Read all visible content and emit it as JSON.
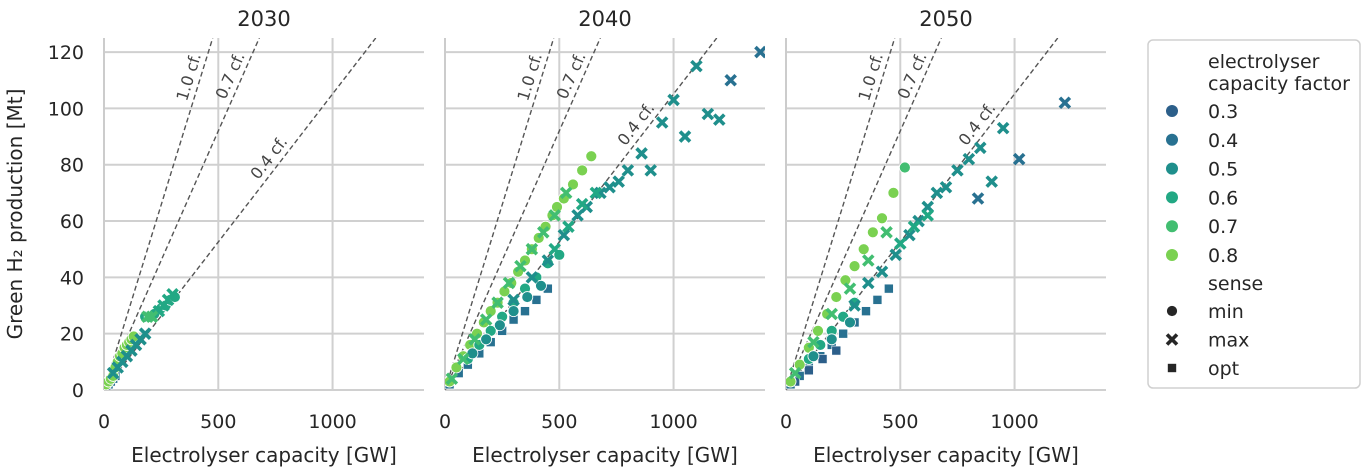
{
  "chart_data": {
    "type": "scatter",
    "xlabel": "Electrolyser capacity [GW]",
    "ylabel": "Green H₂ production [Mt]",
    "xlim": [
      0,
      1400
    ],
    "ylim": [
      0,
      125
    ],
    "xticks": [
      0,
      500,
      1000
    ],
    "yticks": [
      0,
      20,
      40,
      60,
      80,
      100,
      120
    ],
    "grid": true,
    "capacity_factor_lines": [
      {
        "label": "1.0 cf.",
        "cf": 1.0
      },
      {
        "label": "0.7 cf.",
        "cf": 0.7
      },
      {
        "label": "0.4 cf.",
        "cf": 0.4
      }
    ],
    "legend": {
      "placement": "right",
      "hue_title": "electrolyser\ncapacity factor",
      "hue_items": [
        {
          "label": "0.3",
          "color": "#2c5f8a"
        },
        {
          "label": "0.4",
          "color": "#287191"
        },
        {
          "label": "0.5",
          "color": "#1f8f8c"
        },
        {
          "label": "0.6",
          "color": "#22a884"
        },
        {
          "label": "0.7",
          "color": "#42be71"
        },
        {
          "label": "0.8",
          "color": "#7ad151"
        }
      ],
      "style_title": "sense",
      "style_items": [
        {
          "label": "min",
          "marker": "circle"
        },
        {
          "label": "max",
          "marker": "x"
        },
        {
          "label": "opt",
          "marker": "square"
        }
      ]
    },
    "panels": [
      {
        "title": "2030",
        "series": [
          {
            "sense": "min",
            "points": [
              [
                10,
                2,
                0.8
              ],
              [
                20,
                3,
                0.8
              ],
              [
                30,
                4,
                0.8
              ],
              [
                40,
                5,
                0.8
              ],
              [
                50,
                8,
                0.8
              ],
              [
                60,
                10,
                0.8
              ],
              [
                70,
                12,
                0.8
              ],
              [
                80,
                13,
                0.8
              ],
              [
                90,
                15,
                0.8
              ],
              [
                100,
                16,
                0.8
              ],
              [
                110,
                17,
                0.8
              ],
              [
                120,
                18,
                0.8
              ],
              [
                130,
                19,
                0.8
              ],
              [
                180,
                26,
                0.6
              ],
              [
                200,
                26,
                0.6
              ],
              [
                220,
                27,
                0.6
              ],
              [
                250,
                29,
                0.6
              ],
              [
                270,
                30,
                0.6
              ],
              [
                290,
                32,
                0.6
              ],
              [
                310,
                33,
                0.6
              ]
            ]
          },
          {
            "sense": "max",
            "points": [
              [
                40,
                6,
                0.5
              ],
              [
                60,
                8,
                0.5
              ],
              [
                80,
                10,
                0.5
              ],
              [
                100,
                12,
                0.5
              ],
              [
                120,
                14,
                0.5
              ],
              [
                140,
                16,
                0.5
              ],
              [
                160,
                18,
                0.5
              ],
              [
                180,
                20,
                0.5
              ],
              [
                240,
                28,
                0.6
              ],
              [
                260,
                30,
                0.6
              ],
              [
                280,
                32,
                0.6
              ],
              [
                300,
                34,
                0.6
              ],
              [
                190,
                26,
                0.7
              ],
              [
                210,
                26,
                0.7
              ]
            ]
          },
          {
            "sense": "opt",
            "points": [
              [
                10,
                1,
                0.4
              ],
              [
                20,
                2,
                0.4
              ],
              [
                30,
                3,
                0.4
              ],
              [
                40,
                4,
                0.4
              ],
              [
                50,
                5,
                0.4
              ]
            ]
          }
        ]
      },
      {
        "title": "2040",
        "series": [
          {
            "sense": "min",
            "points": [
              [
                20,
                3,
                0.8
              ],
              [
                50,
                8,
                0.8
              ],
              [
                80,
                12,
                0.8
              ],
              [
                110,
                16,
                0.8
              ],
              [
                140,
                20,
                0.8
              ],
              [
                170,
                24,
                0.8
              ],
              [
                200,
                28,
                0.8
              ],
              [
                230,
                31,
                0.8
              ],
              [
                260,
                35,
                0.8
              ],
              [
                290,
                38,
                0.8
              ],
              [
                320,
                42,
                0.8
              ],
              [
                350,
                46,
                0.8
              ],
              [
                380,
                50,
                0.8
              ],
              [
                410,
                54,
                0.8
              ],
              [
                440,
                58,
                0.8
              ],
              [
                470,
                62,
                0.8
              ],
              [
                490,
                65,
                0.8
              ],
              [
                520,
                68,
                0.8
              ],
              [
                560,
                73,
                0.8
              ],
              [
                600,
                78,
                0.8
              ],
              [
                640,
                83,
                0.8
              ],
              [
                100,
                11,
                0.6
              ],
              [
                150,
                16,
                0.6
              ],
              [
                200,
                21,
                0.6
              ],
              [
                250,
                26,
                0.6
              ],
              [
                300,
                31,
                0.6
              ],
              [
                350,
                36,
                0.6
              ],
              [
                400,
                40,
                0.6
              ],
              [
                450,
                45,
                0.6
              ],
              [
                500,
                48,
                0.6
              ],
              [
                120,
                13,
                0.5
              ],
              [
                180,
                18,
                0.5
              ],
              [
                240,
                23,
                0.5
              ],
              [
                300,
                28,
                0.5
              ],
              [
                360,
                33,
                0.5
              ],
              [
                420,
                37,
                0.5
              ]
            ]
          },
          {
            "sense": "max",
            "points": [
              [
                30,
                4,
                0.7
              ],
              [
                80,
                11,
                0.7
              ],
              [
                130,
                18,
                0.7
              ],
              [
                180,
                25,
                0.7
              ],
              [
                230,
                31,
                0.7
              ],
              [
                280,
                38,
                0.7
              ],
              [
                330,
                44,
                0.7
              ],
              [
                380,
                50,
                0.7
              ],
              [
                430,
                56,
                0.7
              ],
              [
                480,
                62,
                0.7
              ],
              [
                530,
                70,
                0.7
              ],
              [
                300,
                32,
                0.5
              ],
              [
                380,
                40,
                0.5
              ],
              [
                450,
                46,
                0.5
              ],
              [
                520,
                55,
                0.5
              ],
              [
                580,
                62,
                0.5
              ],
              [
                620,
                65,
                0.5
              ],
              [
                680,
                70,
                0.5
              ],
              [
                720,
                72,
                0.5
              ],
              [
                760,
                74,
                0.5
              ],
              [
                800,
                78,
                0.5
              ],
              [
                860,
                84,
                0.5
              ],
              [
                900,
                78,
                0.5
              ],
              [
                950,
                95,
                0.5
              ],
              [
                1000,
                103,
                0.5
              ],
              [
                1050,
                90,
                0.5
              ],
              [
                1100,
                115,
                0.5
              ],
              [
                1150,
                98,
                0.5
              ],
              [
                1200,
                96,
                0.5
              ],
              [
                1250,
                110,
                0.4
              ],
              [
                1380,
                120,
                0.4
              ],
              [
                480,
                50,
                0.6
              ],
              [
                540,
                58,
                0.6
              ],
              [
                600,
                66,
                0.6
              ],
              [
                660,
                70,
                0.6
              ]
            ]
          },
          {
            "sense": "opt",
            "points": [
              [
                20,
                2,
                0.4
              ],
              [
                60,
                6,
                0.4
              ],
              [
                100,
                9,
                0.4
              ],
              [
                150,
                13,
                0.4
              ],
              [
                200,
                17,
                0.4
              ],
              [
                250,
                21,
                0.4
              ],
              [
                300,
                25,
                0.4
              ],
              [
                350,
                28,
                0.4
              ],
              [
                400,
                32,
                0.4
              ],
              [
                450,
                36,
                0.4
              ]
            ]
          }
        ]
      },
      {
        "title": "2050",
        "series": [
          {
            "sense": "min",
            "points": [
              [
                20,
                3,
                0.8
              ],
              [
                60,
                9,
                0.8
              ],
              [
                100,
                15,
                0.8
              ],
              [
                140,
                21,
                0.8
              ],
              [
                180,
                27,
                0.8
              ],
              [
                220,
                33,
                0.8
              ],
              [
                260,
                39,
                0.8
              ],
              [
                300,
                44,
                0.8
              ],
              [
                340,
                50,
                0.8
              ],
              [
                380,
                56,
                0.8
              ],
              [
                420,
                61,
                0.8
              ],
              [
                470,
                70,
                0.8
              ],
              [
                520,
                79,
                0.7
              ],
              [
                100,
                11,
                0.6
              ],
              [
                150,
                16,
                0.6
              ],
              [
                200,
                21,
                0.6
              ],
              [
                250,
                26,
                0.6
              ],
              [
                300,
                31,
                0.6
              ],
              [
                120,
                12,
                0.5
              ],
              [
                200,
                18,
                0.5
              ],
              [
                280,
                24,
                0.5
              ]
            ]
          },
          {
            "sense": "max",
            "points": [
              [
                40,
                6,
                0.7
              ],
              [
                120,
                17,
                0.7
              ],
              [
                200,
                27,
                0.7
              ],
              [
                280,
                36,
                0.7
              ],
              [
                360,
                46,
                0.7
              ],
              [
                440,
                56,
                0.7
              ],
              [
                300,
                30,
                0.5
              ],
              [
                360,
                38,
                0.5
              ],
              [
                420,
                42,
                0.5
              ],
              [
                480,
                48,
                0.5
              ],
              [
                540,
                55,
                0.5
              ],
              [
                580,
                60,
                0.5
              ],
              [
                620,
                65,
                0.5
              ],
              [
                660,
                70,
                0.5
              ],
              [
                700,
                72,
                0.5
              ],
              [
                750,
                78,
                0.5
              ],
              [
                800,
                82,
                0.5
              ],
              [
                850,
                86,
                0.5
              ],
              [
                900,
                74,
                0.5
              ],
              [
                950,
                93,
                0.5
              ],
              [
                1020,
                82,
                0.4
              ],
              [
                1220,
                102,
                0.4
              ],
              [
                840,
                68,
                0.4
              ],
              [
                500,
                52,
                0.6
              ],
              [
                560,
                58,
                0.6
              ],
              [
                620,
                62,
                0.6
              ]
            ]
          },
          {
            "sense": "opt",
            "points": [
              [
                20,
                2,
                0.4
              ],
              [
                60,
                5,
                0.4
              ],
              [
                100,
                8,
                0.4
              ],
              [
                150,
                12,
                0.4
              ],
              [
                200,
                16,
                0.4
              ],
              [
                250,
                20,
                0.4
              ],
              [
                300,
                24,
                0.4
              ],
              [
                350,
                28,
                0.4
              ],
              [
                400,
                32,
                0.4
              ],
              [
                450,
                36,
                0.4
              ],
              [
                40,
                3,
                0.3
              ],
              [
                100,
                7,
                0.3
              ],
              [
                160,
                11,
                0.3
              ],
              [
                220,
                14,
                0.3
              ]
            ]
          }
        ]
      }
    ]
  }
}
